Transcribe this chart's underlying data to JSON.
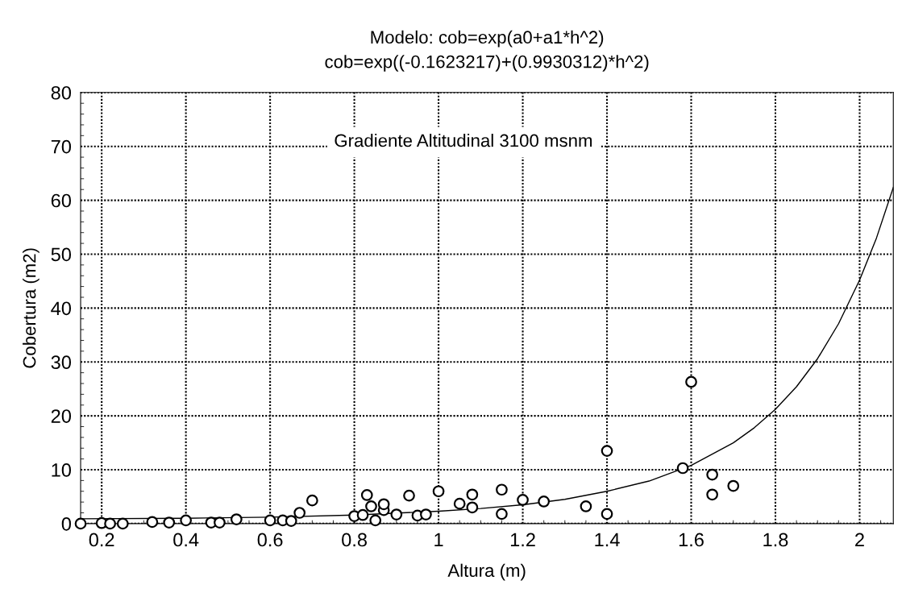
{
  "chart_data": {
    "type": "scatter",
    "title": "Modelo: cob=exp(a0+a1*h^2)\ncob=exp((-0.1623217)+(0.9930312)*h^2)",
    "xlabel": "Altura (m)",
    "ylabel": "Cobertura (m2)",
    "annotations": [
      "Gradiente Altitudinal 3100 msnm"
    ],
    "xlim": [
      0.15,
      2.08
    ],
    "ylim": [
      0,
      80
    ],
    "xticks": [
      0.2,
      0.4,
      0.6,
      0.8,
      1,
      1.2,
      1.4,
      1.6,
      1.8,
      2
    ],
    "yticks": [
      0,
      10,
      20,
      30,
      40,
      50,
      60,
      70,
      80
    ],
    "grid": true,
    "marker": "circle",
    "series": [
      {
        "color": "#000000",
        "x": [
          0.15,
          0.2,
          0.22,
          0.25,
          0.32,
          0.36,
          0.4,
          0.46,
          0.48,
          0.52,
          0.6,
          0.63,
          0.65,
          0.67,
          0.7,
          0.8,
          0.82,
          0.83,
          0.84,
          0.85,
          0.87,
          0.87,
          0.9,
          0.93,
          0.95,
          0.97,
          1.0,
          1.05,
          1.08,
          1.08,
          1.15,
          1.15,
          1.2,
          1.25,
          1.35,
          1.4,
          1.4,
          1.58,
          1.6,
          1.65,
          1.65,
          1.7
        ],
        "values": [
          0,
          0.1,
          0,
          0,
          0.3,
          0.2,
          0.6,
          0.2,
          0.2,
          0.8,
          0.6,
          0.6,
          0.5,
          2.0,
          4.3,
          1.4,
          1.6,
          5.3,
          3.2,
          0.6,
          2.5,
          3.6,
          1.7,
          5.2,
          1.5,
          1.7,
          6.0,
          3.7,
          5.4,
          3.0,
          6.3,
          1.8,
          4.4,
          4.1,
          3.2,
          13.5,
          1.8,
          10.3,
          26.3,
          9.1,
          5.4,
          7.0
        ]
      },
      {
        "type": "line",
        "color": "#000000",
        "marker": "none",
        "line_style": "solid",
        "x": [
          0.15,
          0.4,
          0.6,
          0.8,
          1.0,
          1.1,
          1.2,
          1.3,
          1.4,
          1.5,
          1.6,
          1.7,
          1.75,
          1.8,
          1.85,
          1.9,
          1.95,
          2.0,
          2.04,
          2.08
        ],
        "values": [
          0.9,
          1.0,
          1.2,
          1.6,
          2.3,
          2.8,
          3.5,
          4.5,
          6.0,
          7.9,
          10.8,
          15.0,
          17.8,
          21.2,
          25.4,
          30.6,
          37.1,
          45.2,
          53.0,
          62.4
        ]
      }
    ]
  }
}
